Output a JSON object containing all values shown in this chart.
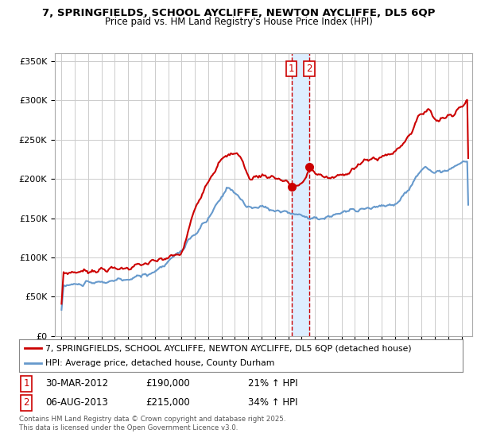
{
  "title_line1": "7, SPRINGFIELDS, SCHOOL AYCLIFFE, NEWTON AYCLIFFE, DL5 6QP",
  "title_line2": "Price paid vs. HM Land Registry's House Price Index (HPI)",
  "background_color": "#ffffff",
  "grid_color": "#cccccc",
  "red_line_color": "#cc0000",
  "blue_line_color": "#6699cc",
  "purchase1_date": 2012.24,
  "purchase1_price": 190000,
  "purchase2_date": 2013.59,
  "purchase2_price": 215000,
  "vline_color": "#cc0000",
  "vband_color": "#ddeeff",
  "yticks": [
    0,
    50000,
    100000,
    150000,
    200000,
    250000,
    300000,
    350000
  ],
  "ytick_labels": [
    "£0",
    "£50K",
    "£100K",
    "£150K",
    "£200K",
    "£250K",
    "£300K",
    "£350K"
  ],
  "ylim": [
    0,
    360000
  ],
  "xlim_start": 1994.5,
  "xlim_end": 2025.8,
  "legend_red": "7, SPRINGFIELDS, SCHOOL AYCLIFFE, NEWTON AYCLIFFE, DL5 6QP (detached house)",
  "legend_blue": "HPI: Average price, detached house, County Durham",
  "footer_text": "Contains HM Land Registry data © Crown copyright and database right 2025.\nThis data is licensed under the Open Government Licence v3.0.",
  "table_row1_num": "1",
  "table_row1_date": "30-MAR-2012",
  "table_row1_price": "£190,000",
  "table_row1_hpi": "21% ↑ HPI",
  "table_row2_num": "2",
  "table_row2_date": "06-AUG-2013",
  "table_row2_price": "£215,000",
  "table_row2_hpi": "34% ↑ HPI"
}
